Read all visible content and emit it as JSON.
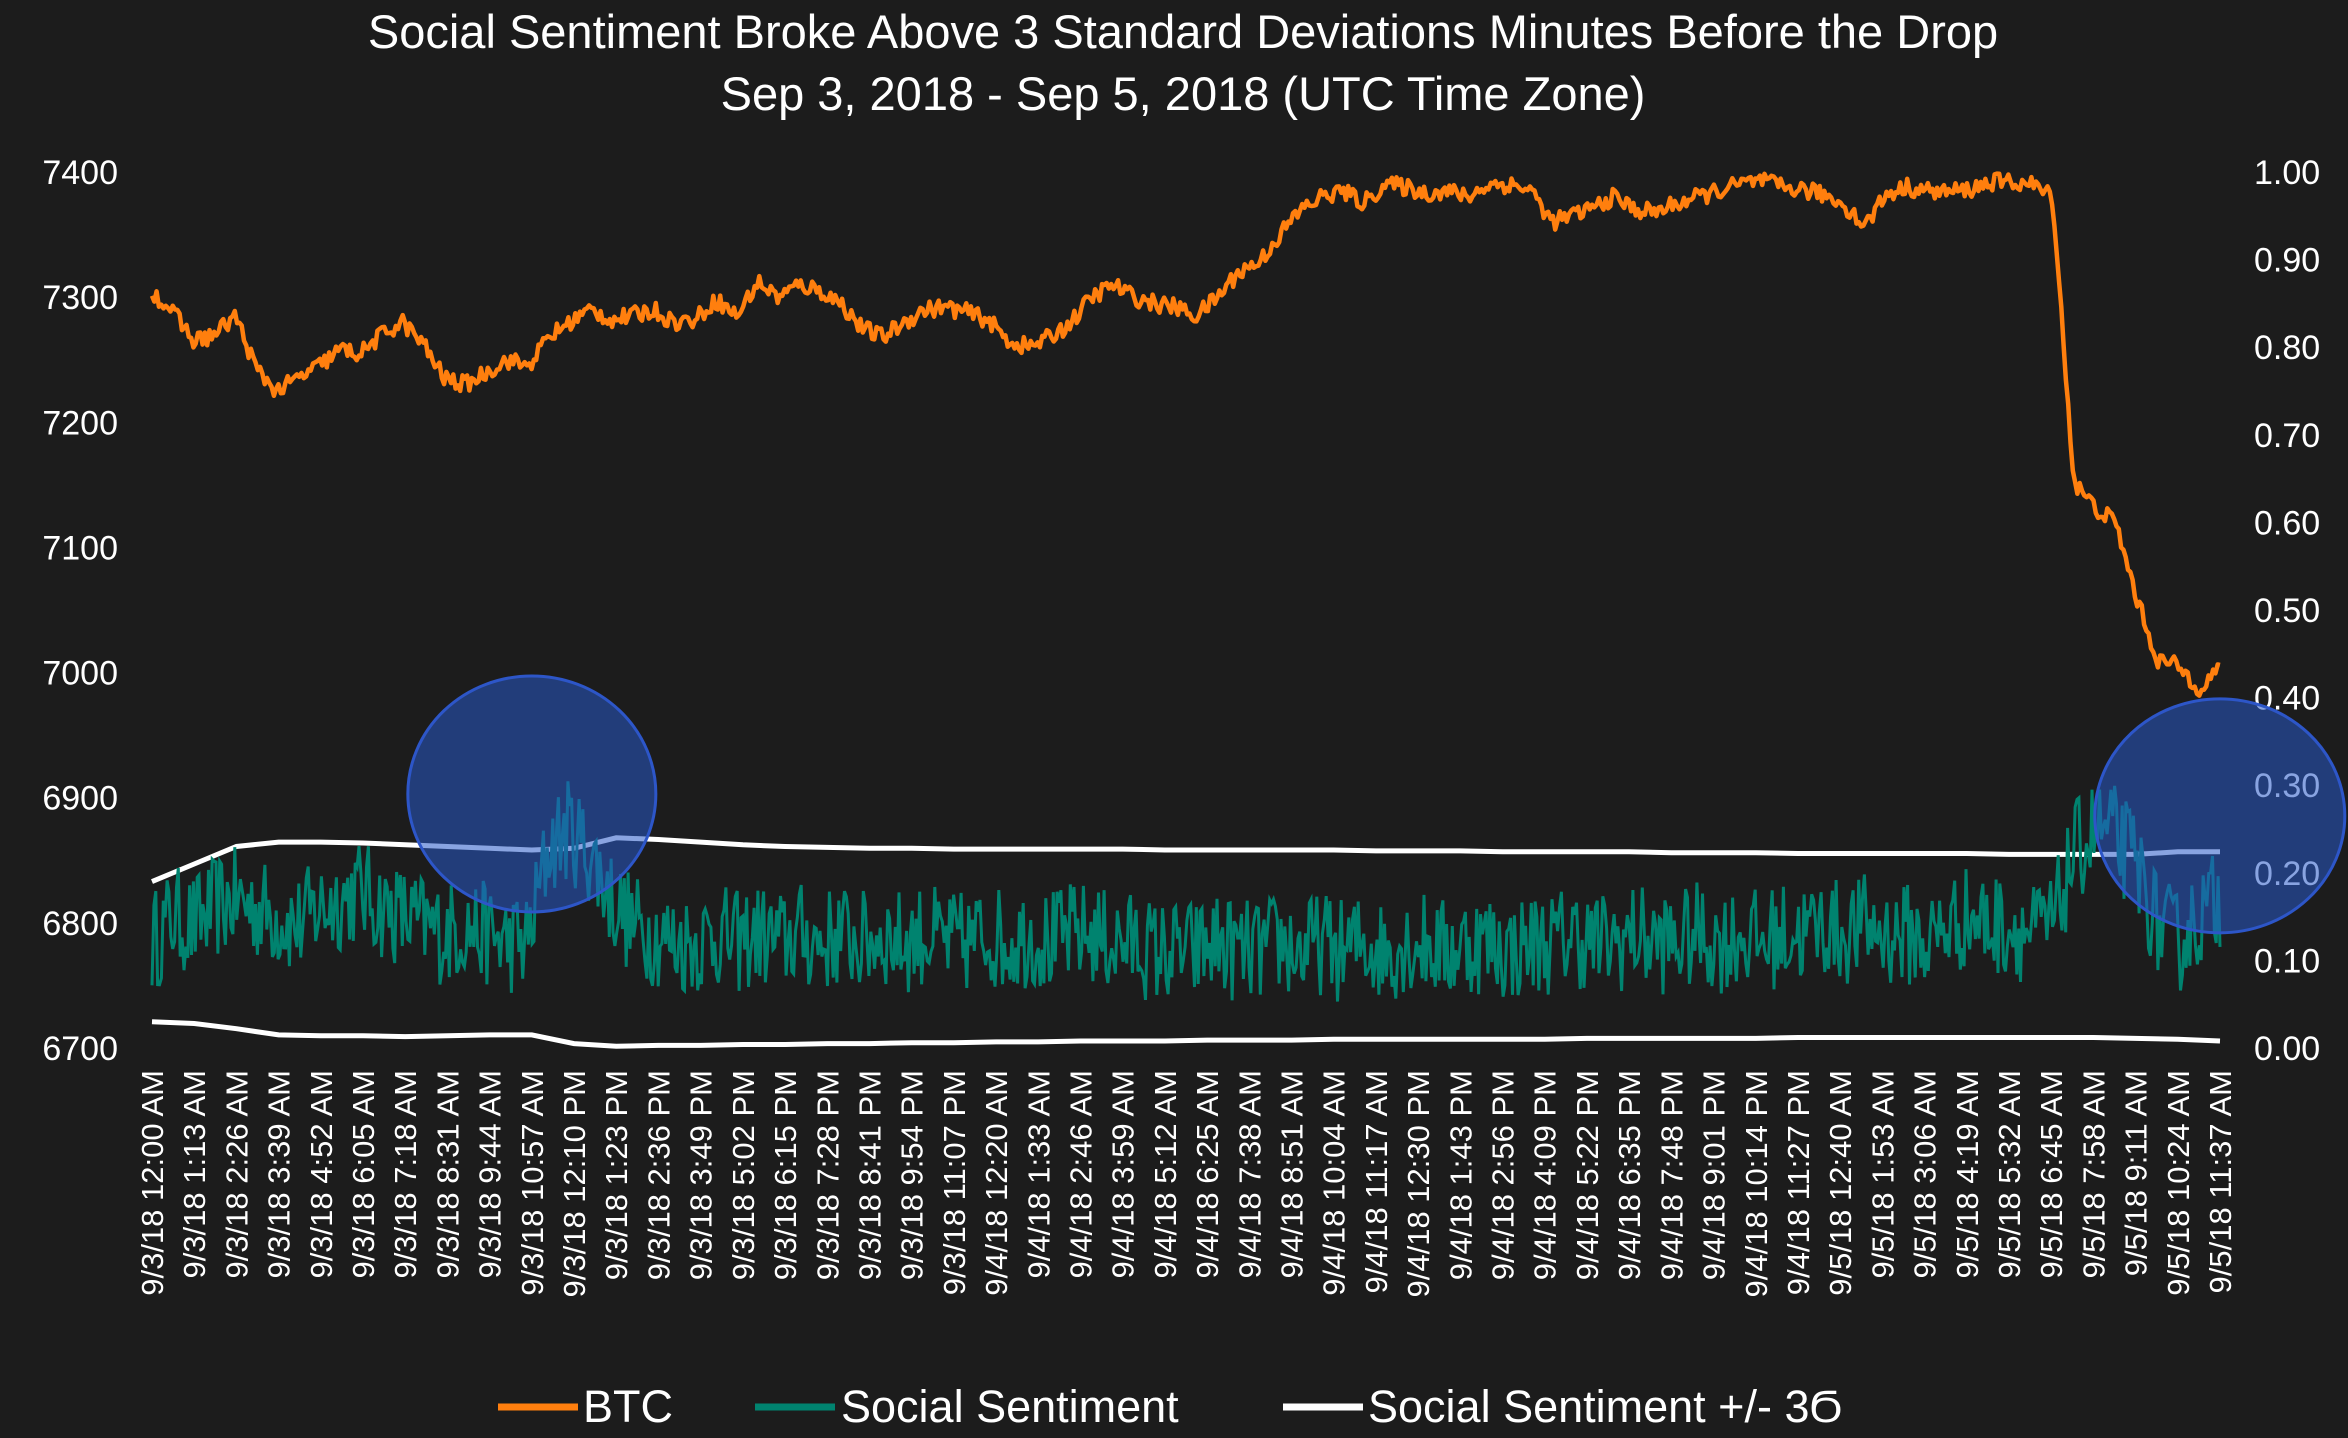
{
  "chart_data": {
    "type": "line",
    "title": "Social Sentiment Broke Above 3 Standard Deviations Minutes Before the Drop",
    "subtitle": "Sep 3, 2018 - Sep 5, 2018 (UTC Time Zone)",
    "y_left": {
      "range": [
        6700,
        7400
      ],
      "ticks": [
        "7400",
        "7300",
        "7200",
        "7100",
        "7000",
        "6900",
        "6800",
        "6700"
      ]
    },
    "y_right": {
      "range": [
        0.0,
        1.0
      ],
      "ticks": [
        "1.00",
        "0.90",
        "0.80",
        "0.70",
        "0.60",
        "0.50",
        "0.40",
        "0.30",
        "0.20",
        "0.10",
        "0.00"
      ]
    },
    "x_ticks": [
      "9/3/18 12:00 AM",
      "9/3/18 1:13 AM",
      "9/3/18 2:26 AM",
      "9/3/18 3:39 AM",
      "9/3/18 4:52 AM",
      "9/3/18 6:05 AM",
      "9/3/18 7:18 AM",
      "9/3/18 8:31 AM",
      "9/3/18 9:44 AM",
      "9/3/18 10:57 AM",
      "9/3/18 12:10 PM",
      "9/3/18 1:23 PM",
      "9/3/18 2:36 PM",
      "9/3/18 3:49 PM",
      "9/3/18 5:02 PM",
      "9/3/18 6:15 PM",
      "9/3/18 7:28 PM",
      "9/3/18 8:41 PM",
      "9/3/18 9:54 PM",
      "9/3/18 11:07 PM",
      "9/4/18 12:20 AM",
      "9/4/18 1:33 AM",
      "9/4/18 2:46 AM",
      "9/4/18 3:59 AM",
      "9/4/18 5:12 AM",
      "9/4/18 6:25 AM",
      "9/4/18 7:38 AM",
      "9/4/18 8:51 AM",
      "9/4/18 10:04 AM",
      "9/4/18 11:17 AM",
      "9/4/18 12:30 PM",
      "9/4/18 1:43 PM",
      "9/4/18 2:56 PM",
      "9/4/18 4:09 PM",
      "9/4/18 5:22 PM",
      "9/4/18 6:35 PM",
      "9/4/18 7:48 PM",
      "9/4/18 9:01 PM",
      "9/4/18 10:14 PM",
      "9/4/18 11:27 PM",
      "9/5/18 12:40 AM",
      "9/5/18 1:53 AM",
      "9/5/18 3:06 AM",
      "9/5/18 4:19 AM",
      "9/5/18 5:32 AM",
      "9/5/18 6:45 AM",
      "9/5/18 7:58 AM",
      "9/5/18 9:11 AM",
      "9/5/18 10:24 AM",
      "9/5/18 11:37 AM"
    ],
    "series": [
      {
        "name": "BTC",
        "axis": "left",
        "color": "#ff7f0e",
        "values": [
          7305,
          7288,
          7265,
          7270,
          7285,
          7242,
          7225,
          7235,
          7245,
          7258,
          7255,
          7270,
          7280,
          7262,
          7235,
          7230,
          7240,
          7250,
          7245,
          7268,
          7280,
          7290,
          7282,
          7285,
          7290,
          7280,
          7282,
          7298,
          7285,
          7312,
          7300,
          7310,
          7305,
          7295,
          7275,
          7268,
          7280,
          7290,
          7292,
          7288,
          7282,
          7265,
          7260,
          7268,
          7280,
          7300,
          7310,
          7300,
          7295,
          7292,
          7285,
          7300,
          7320,
          7328,
          7350,
          7370,
          7380,
          7385,
          7375,
          7390,
          7388,
          7383,
          7385,
          7380,
          7390,
          7390,
          7386,
          7360,
          7365,
          7372,
          7380,
          7370,
          7368,
          7375,
          7380,
          7385,
          7390,
          7393,
          7388,
          7386,
          7382,
          7374,
          7357,
          7382,
          7388,
          7385,
          7384,
          7386,
          7392,
          7392,
          7390,
          7380,
          7152,
          7132,
          7120,
          7060,
          7010,
          7005,
          6988,
          7003
        ]
      },
      {
        "name": "Social Sentiment",
        "axis": "right",
        "color": "#00836f",
        "values": [
          0.12,
          0.15,
          0.14,
          0.16,
          0.17,
          0.16,
          0.15,
          0.14,
          0.16,
          0.17,
          0.18,
          0.16,
          0.15,
          0.14,
          0.13,
          0.14,
          0.13,
          0.12,
          0.12,
          0.23,
          0.25,
          0.22,
          0.17,
          0.14,
          0.13,
          0.12,
          0.12,
          0.13,
          0.12,
          0.13,
          0.12,
          0.13,
          0.12,
          0.13,
          0.12,
          0.13,
          0.12,
          0.13,
          0.12,
          0.12,
          0.13,
          0.12,
          0.13,
          0.12,
          0.13,
          0.13,
          0.12,
          0.12,
          0.11,
          0.11,
          0.11,
          0.12,
          0.11,
          0.11,
          0.12,
          0.11,
          0.12,
          0.11,
          0.12,
          0.11,
          0.12,
          0.12,
          0.11,
          0.12,
          0.12,
          0.11,
          0.12,
          0.12,
          0.13,
          0.12,
          0.12,
          0.13,
          0.12,
          0.12,
          0.13,
          0.12,
          0.13,
          0.12,
          0.13,
          0.13,
          0.14,
          0.13,
          0.14,
          0.13,
          0.13,
          0.12,
          0.14,
          0.15,
          0.14,
          0.14,
          0.13,
          0.14,
          0.22,
          0.25,
          0.24,
          0.21,
          0.14,
          0.12,
          0.15,
          0.17
        ]
      },
      {
        "name": "Social Sentiment +/- 3Ϭ",
        "axis": "right",
        "color": "#ffffff",
        "upper": [
          0.19,
          0.21,
          0.23,
          0.235,
          0.235,
          0.234,
          0.232,
          0.23,
          0.228,
          0.226,
          0.228,
          0.24,
          0.238,
          0.235,
          0.232,
          0.23,
          0.229,
          0.228,
          0.228,
          0.227,
          0.227,
          0.227,
          0.227,
          0.227,
          0.226,
          0.226,
          0.226,
          0.226,
          0.226,
          0.225,
          0.225,
          0.225,
          0.224,
          0.224,
          0.224,
          0.224,
          0.223,
          0.223,
          0.223,
          0.222,
          0.222,
          0.222,
          0.222,
          0.222,
          0.221,
          0.221,
          0.221,
          0.221,
          0.224,
          0.224
        ],
        "lower": [
          0.03,
          0.028,
          0.022,
          0.015,
          0.014,
          0.014,
          0.013,
          0.014,
          0.015,
          0.015,
          0.005,
          0.002,
          0.003,
          0.003,
          0.004,
          0.004,
          0.005,
          0.005,
          0.006,
          0.006,
          0.007,
          0.007,
          0.008,
          0.008,
          0.008,
          0.009,
          0.009,
          0.009,
          0.01,
          0.01,
          0.01,
          0.01,
          0.01,
          0.01,
          0.011,
          0.011,
          0.011,
          0.011,
          0.011,
          0.012,
          0.012,
          0.012,
          0.012,
          0.012,
          0.012,
          0.012,
          0.012,
          0.011,
          0.01,
          0.008
        ]
      }
    ],
    "annotations": [
      {
        "label": "",
        "x_tick": "9/3/18 10:57 AM",
        "y_right": 0.29
      },
      {
        "label": "",
        "x_tick": "9/5/18 10:24 AM",
        "y_right": 0.265
      }
    ],
    "legend": {
      "placement": "bottom",
      "items": [
        "BTC",
        "Social Sentiment",
        "Social Sentiment +/- 3Ϭ"
      ]
    },
    "grid": false
  }
}
